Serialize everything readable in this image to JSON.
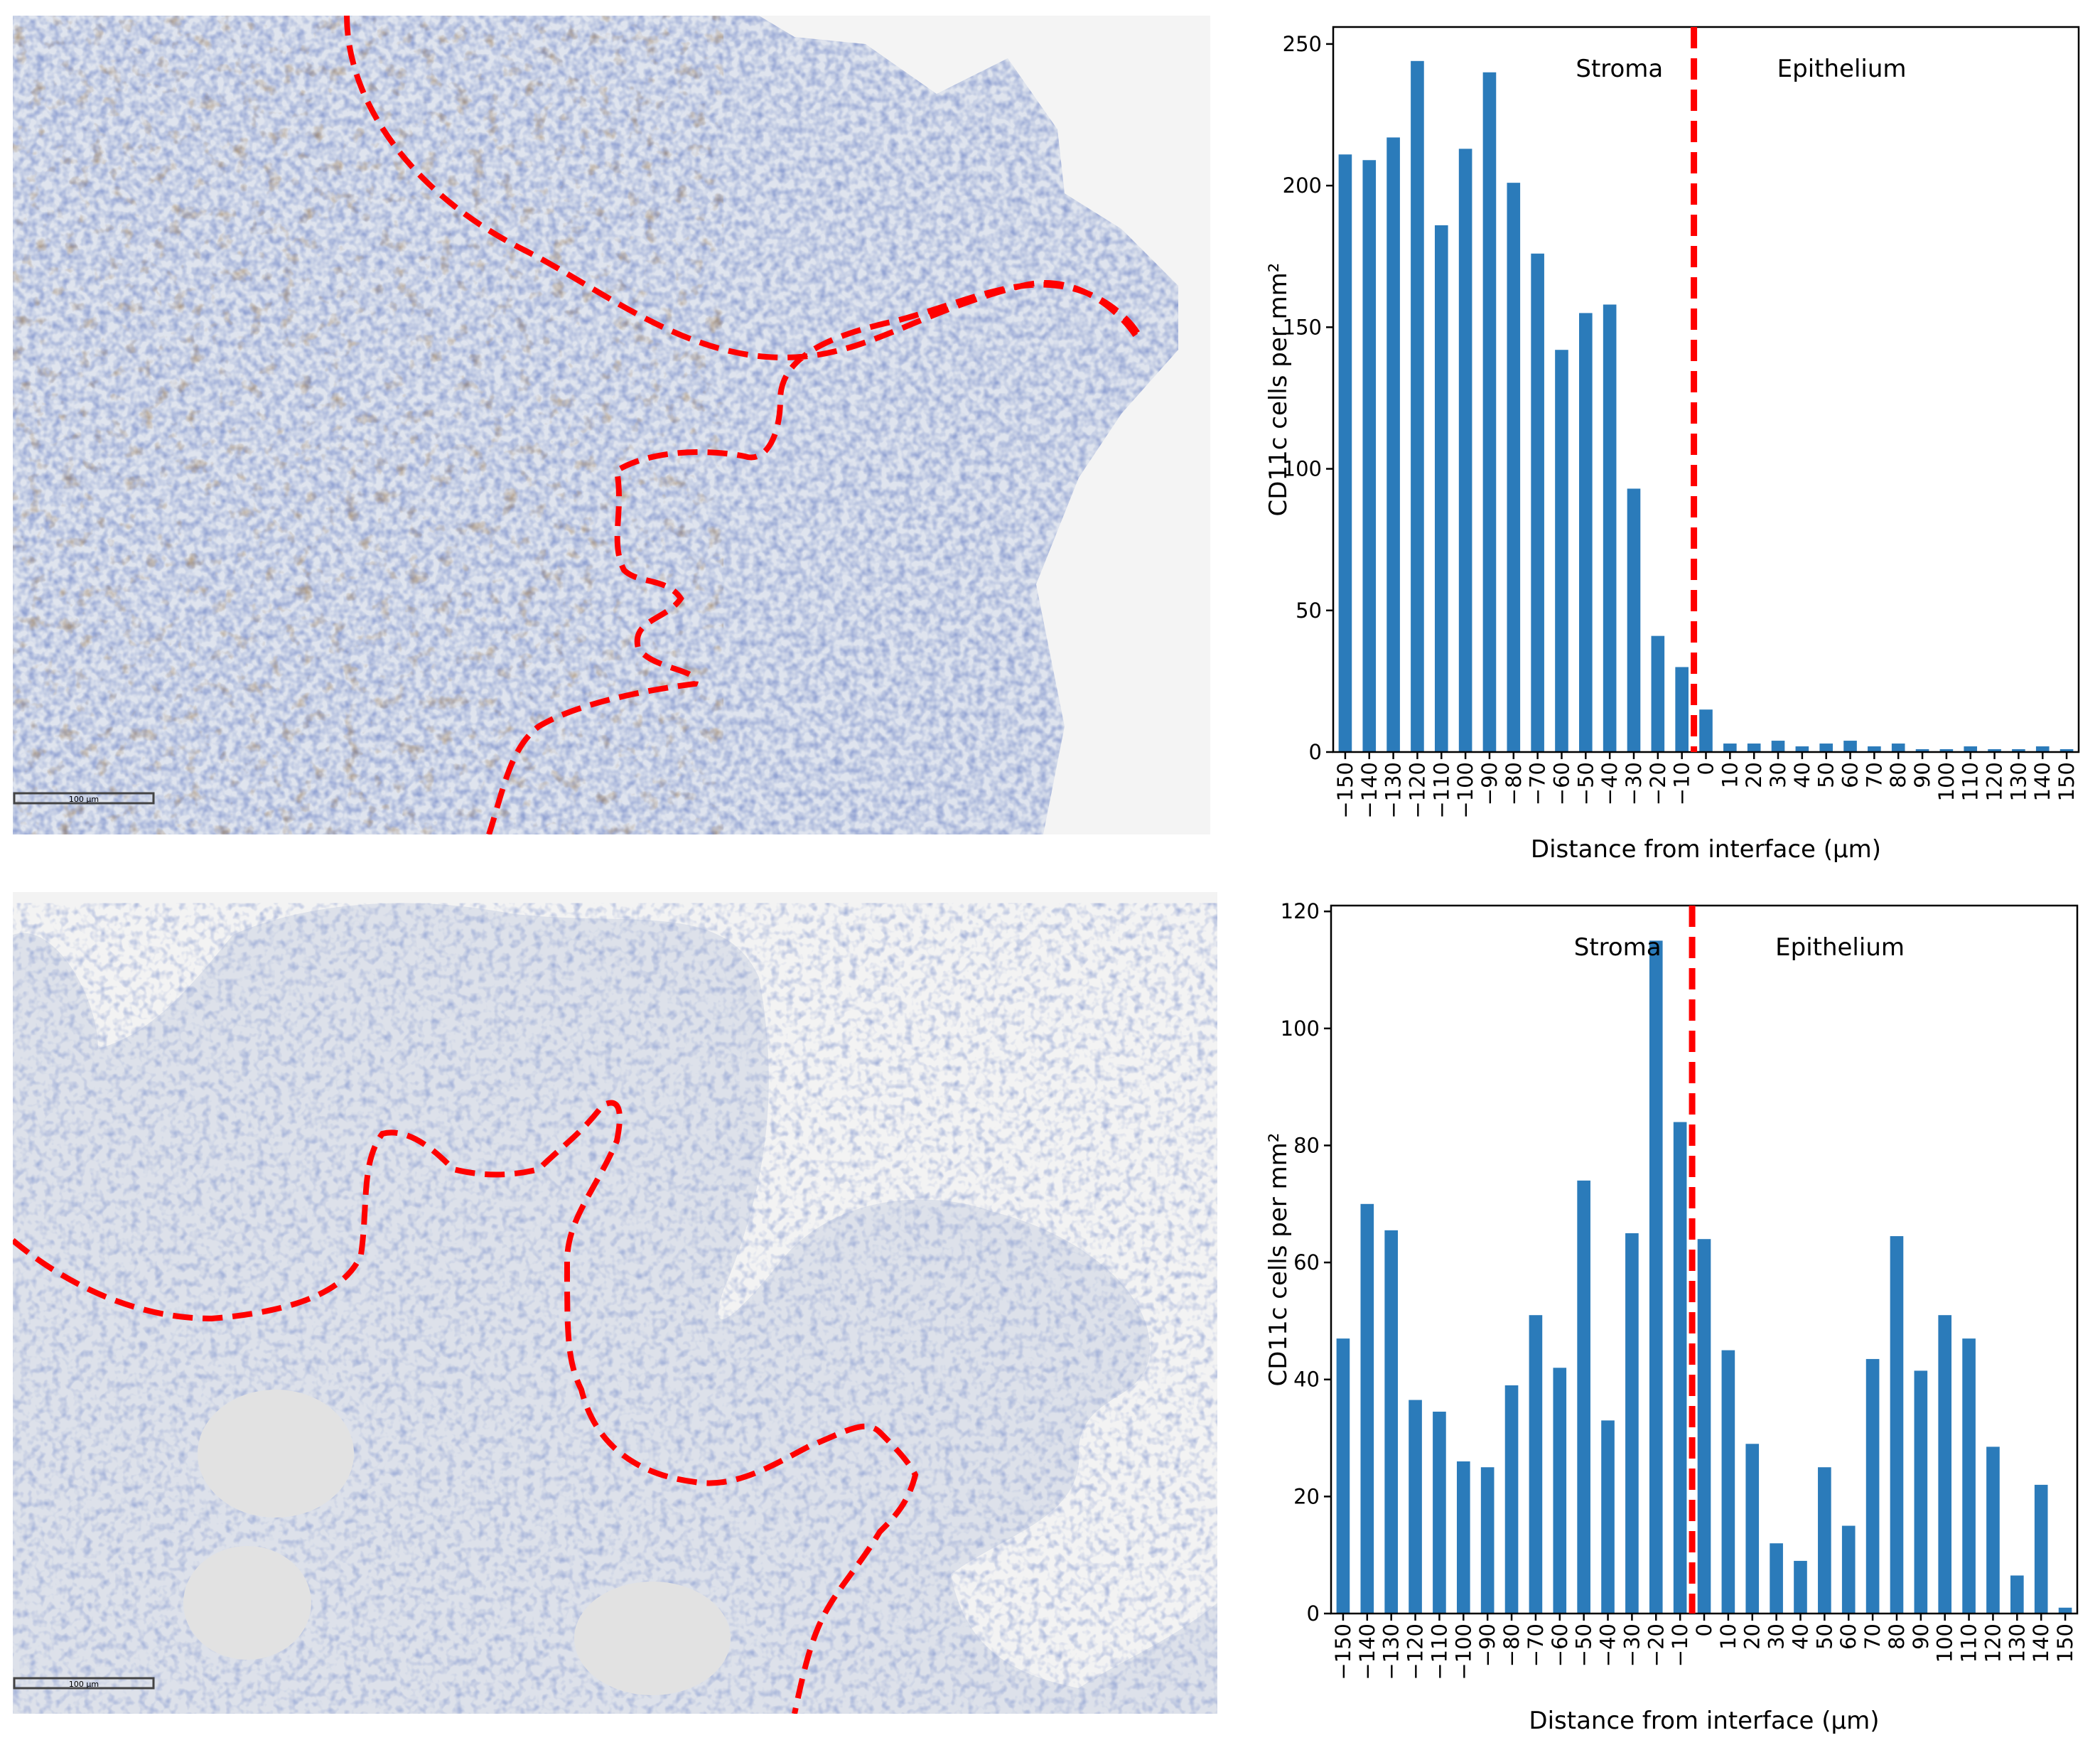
{
  "figure": {
    "micrographs": [
      {
        "id": "top",
        "scale_bar_label": "100 μm"
      },
      {
        "id": "bottom",
        "scale_bar_label": "100 μm"
      }
    ]
  },
  "colors": {
    "bar": "#2b7bba",
    "interface": "#ff0000",
    "stain_brown": "#4a2a14",
    "nuclei_blue": "#6e86bf",
    "tissue_bg": "#dde2ec"
  },
  "chart_data": [
    {
      "type": "bar",
      "ylabel": "CD11c cells per mm²",
      "xlabel": "Distance from interface (μm)",
      "ylim": [
        0,
        256
      ],
      "yticks": [
        0,
        50,
        100,
        150,
        200,
        250
      ],
      "region_labels": {
        "left": "Stroma",
        "right": "Epithelium"
      },
      "interface_at": 0,
      "categories": [
        "−150",
        "−140",
        "−130",
        "−120",
        "−110",
        "−100",
        "−90",
        "−80",
        "−70",
        "−60",
        "−50",
        "−40",
        "−30",
        "−20",
        "−10",
        "0",
        "10",
        "20",
        "30",
        "40",
        "50",
        "60",
        "70",
        "80",
        "90",
        "100",
        "110",
        "120",
        "130",
        "140",
        "150"
      ],
      "values": [
        211,
        209,
        217,
        244,
        186,
        213,
        240,
        201,
        176,
        142,
        155,
        158,
        93,
        41,
        30,
        15,
        3,
        3,
        4,
        2,
        3,
        4,
        2,
        3,
        1,
        1,
        2,
        1,
        1,
        2,
        1
      ]
    },
    {
      "type": "bar",
      "ylabel": "CD11c cells per mm²",
      "xlabel": "Distance from interface (μm)",
      "ylim": [
        0,
        121
      ],
      "yticks": [
        0,
        20,
        40,
        60,
        80,
        100,
        120
      ],
      "region_labels": {
        "left": "Stroma",
        "right": "Epithelium"
      },
      "interface_at": 0,
      "categories": [
        "−150",
        "−140",
        "−130",
        "−120",
        "−110",
        "−100",
        "−90",
        "−80",
        "−70",
        "−60",
        "−50",
        "−40",
        "−30",
        "−20",
        "−10",
        "0",
        "10",
        "20",
        "30",
        "40",
        "50",
        "60",
        "70",
        "80",
        "90",
        "100",
        "110",
        "120",
        "130",
        "140",
        "150"
      ],
      "values": [
        47,
        70,
        65.5,
        36.5,
        34.5,
        26,
        25,
        39,
        51,
        42,
        74,
        33,
        65,
        115,
        84,
        64,
        45,
        29,
        12,
        9,
        25,
        15,
        43.5,
        64.5,
        41.5,
        51,
        47,
        28.5,
        6.5,
        22,
        1
      ]
    }
  ]
}
